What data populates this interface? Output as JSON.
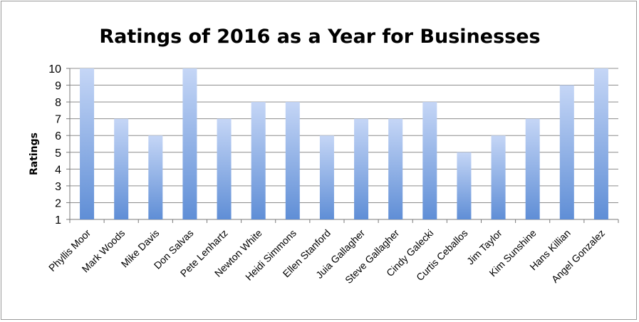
{
  "chart_data": {
    "type": "bar",
    "title": "Ratings of 2016 as a Year for Businesses",
    "xlabel": "",
    "ylabel": "Ratings",
    "ylim": [
      1,
      10
    ],
    "yticks": [
      1,
      2,
      3,
      4,
      5,
      6,
      7,
      8,
      9,
      10
    ],
    "grid": true,
    "legend": "none",
    "categories": [
      "Phyllis Moor",
      "Mark Woods",
      "Mike Davis",
      "Don Salvas",
      "Pete Lenhartz",
      "Newton White",
      "Heidi Simmons",
      "Ellen Stanford",
      "Juia Gallagher",
      "Steve Gallagher",
      "Cindy Galecki",
      "Curtis Ceballos",
      "Jim Taylor",
      "Kim Sunshine",
      "Hans Killian",
      "Angel Gonzalez"
    ],
    "values": [
      10,
      7,
      6,
      10,
      7,
      8,
      8,
      6,
      7,
      7,
      8,
      5,
      6,
      7,
      9,
      10
    ],
    "colors": {
      "bar_top": "#c5d6f6",
      "bar_bottom": "#5f8ed6",
      "grid": "#8c8c8c"
    }
  }
}
